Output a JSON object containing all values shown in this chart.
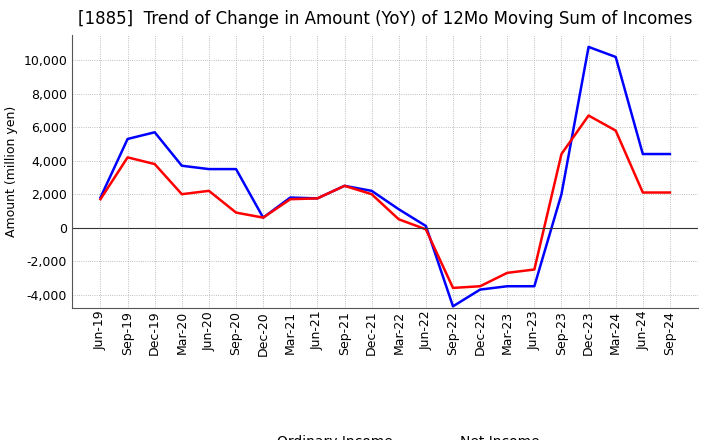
{
  "title": "[1885]  Trend of Change in Amount (YoY) of 12Mo Moving Sum of Incomes",
  "ylabel": "Amount (million yen)",
  "labels": [
    "Jun-19",
    "Sep-19",
    "Dec-19",
    "Mar-20",
    "Jun-20",
    "Sep-20",
    "Dec-20",
    "Mar-21",
    "Jun-21",
    "Sep-21",
    "Dec-21",
    "Mar-22",
    "Jun-22",
    "Sep-22",
    "Dec-22",
    "Mar-23",
    "Jun-23",
    "Sep-23",
    "Dec-23",
    "Mar-24",
    "Jun-24",
    "Sep-24"
  ],
  "ordinary_income": [
    1800,
    5300,
    5700,
    3700,
    3500,
    3500,
    600,
    1800,
    1750,
    2500,
    2200,
    1100,
    100,
    -4700,
    -3700,
    -3500,
    -3500,
    2000,
    10800,
    10200,
    4400,
    4400
  ],
  "net_income": [
    1700,
    4200,
    3800,
    2000,
    2200,
    900,
    600,
    1700,
    1750,
    2500,
    2000,
    500,
    -100,
    -3600,
    -3500,
    -2700,
    -2500,
    4400,
    6700,
    5800,
    2100,
    2100
  ],
  "ordinary_color": "#0000ff",
  "net_color": "#ff0000",
  "ylim": [
    -4800,
    11500
  ],
  "yticks": [
    -4000,
    -2000,
    0,
    2000,
    4000,
    6000,
    8000,
    10000
  ],
  "grid_color": "#aaaaaa",
  "bg_color": "#ffffff",
  "title_fontsize": 12,
  "axis_fontsize": 9,
  "legend_fontsize": 10,
  "line_width": 1.8
}
